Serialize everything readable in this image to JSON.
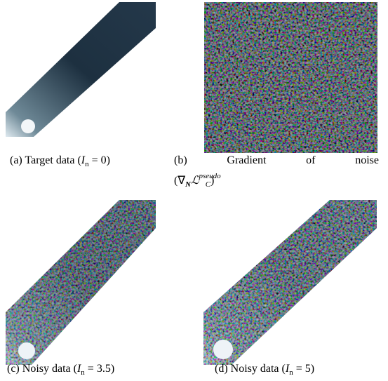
{
  "figure": {
    "panels": [
      {
        "lines": [
          [
            {
              "t": "(a)"
            },
            {
              "t": " Target data ("
            },
            {
              "t": "I",
              "s": "i"
            },
            {
              "t": "n",
              "s": "sub"
            },
            {
              "t": " = 0)"
            }
          ]
        ]
      },
      {
        "lines": [
          [
            {
              "t": "(b)"
            },
            {
              "t": " Gradient of noise"
            }
          ],
          [
            {
              "t": "(∇"
            },
            {
              "t": "N",
              "s": "subbi"
            },
            {
              "t": "ℒ",
              "s": "i"
            },
            {
              "t": "pseudo",
              "s": "sup"
            },
            {
              "t": "C",
              "s": "subi"
            },
            {
              "t": ")"
            }
          ]
        ]
      },
      {
        "lines": [
          [
            {
              "t": "(c)"
            },
            {
              "t": " Noisy data ("
            },
            {
              "t": "I",
              "s": "i"
            },
            {
              "t": "n",
              "s": "sub"
            },
            {
              "t": " = 3.5)"
            }
          ]
        ]
      },
      {
        "lines": [
          [
            {
              "t": "(d)"
            },
            {
              "t": " Noisy data ("
            },
            {
              "t": "I",
              "s": "i"
            },
            {
              "t": "n",
              "s": "sub"
            },
            {
              "t": " = 5)"
            }
          ]
        ]
      }
    ]
  }
}
